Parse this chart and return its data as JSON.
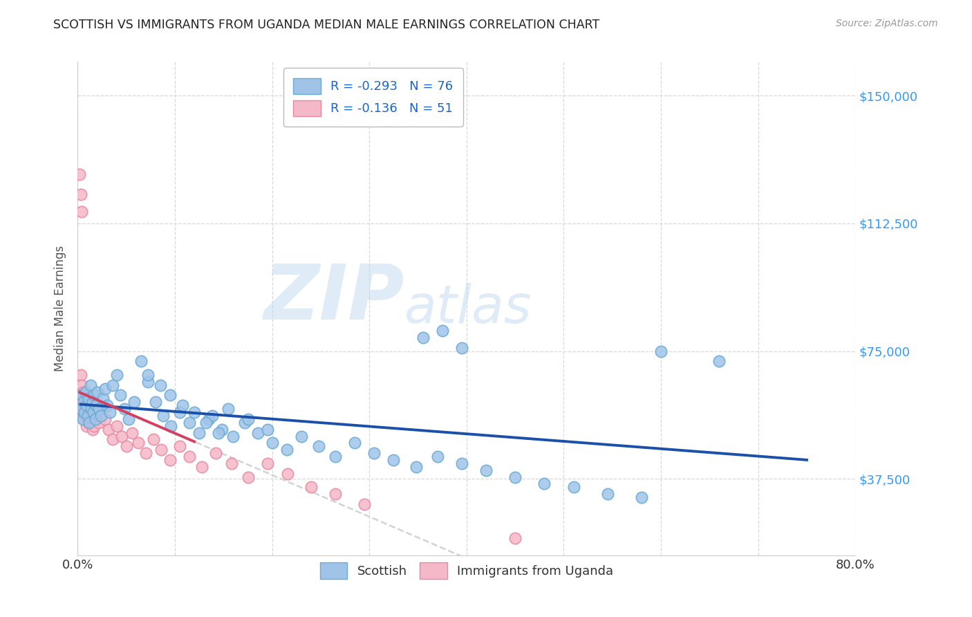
{
  "title": "SCOTTISH VS IMMIGRANTS FROM UGANDA MEDIAN MALE EARNINGS CORRELATION CHART",
  "source": "Source: ZipAtlas.com",
  "ylabel": "Median Male Earnings",
  "watermark_zip": "ZIP",
  "watermark_atlas": "atlas",
  "xlim": [
    0.0,
    0.8
  ],
  "ylim": [
    15000,
    160000
  ],
  "yticks": [
    37500,
    75000,
    112500,
    150000
  ],
  "ytick_labels": [
    "$37,500",
    "$75,000",
    "$112,500",
    "$150,000"
  ],
  "xticks": [
    0.0,
    0.1,
    0.2,
    0.3,
    0.4,
    0.5,
    0.6,
    0.7,
    0.8
  ],
  "xtick_labels": [
    "0.0%",
    "",
    "",
    "",
    "",
    "",
    "",
    "",
    "80.0%"
  ],
  "series1_color": "#a0c4e8",
  "series1_edge": "#6aaad4",
  "series2_color": "#f5b8c8",
  "series2_edge": "#e888a0",
  "trendline1_color": "#1a4faa",
  "trendline2_color": "#d44060",
  "trendline_ghost_color": "#cccccc",
  "background_color": "#ffffff",
  "grid_color": "#d8d8d8",
  "title_color": "#222222",
  "axis_label_color": "#555555",
  "ytick_color": "#3399ff",
  "source_color": "#999999",
  "R1": -0.293,
  "N1": 76,
  "R2": -0.136,
  "N2": 51,
  "scatter1_x": [
    0.003,
    0.004,
    0.005,
    0.006,
    0.007,
    0.008,
    0.009,
    0.01,
    0.011,
    0.012,
    0.013,
    0.014,
    0.015,
    0.016,
    0.017,
    0.018,
    0.019,
    0.02,
    0.022,
    0.024,
    0.026,
    0.028,
    0.03,
    0.033,
    0.036,
    0.04,
    0.044,
    0.048,
    0.052,
    0.058,
    0.065,
    0.072,
    0.08,
    0.088,
    0.096,
    0.105,
    0.115,
    0.125,
    0.135,
    0.148,
    0.16,
    0.172,
    0.185,
    0.2,
    0.215,
    0.23,
    0.248,
    0.265,
    0.285,
    0.305,
    0.325,
    0.348,
    0.37,
    0.395,
    0.42,
    0.45,
    0.48,
    0.51,
    0.545,
    0.58,
    0.355,
    0.375,
    0.395,
    0.138,
    0.155,
    0.175,
    0.195,
    0.072,
    0.085,
    0.095,
    0.108,
    0.12,
    0.132,
    0.145,
    0.6,
    0.66
  ],
  "scatter1_y": [
    58000,
    62000,
    55000,
    60000,
    57000,
    63000,
    59000,
    56000,
    61000,
    54000,
    65000,
    58000,
    60000,
    57000,
    62000,
    55000,
    59000,
    63000,
    58000,
    56000,
    61000,
    64000,
    59000,
    57000,
    65000,
    68000,
    62000,
    58000,
    55000,
    60000,
    72000,
    66000,
    60000,
    56000,
    53000,
    57000,
    54000,
    51000,
    55000,
    52000,
    50000,
    54000,
    51000,
    48000,
    46000,
    50000,
    47000,
    44000,
    48000,
    45000,
    43000,
    41000,
    44000,
    42000,
    40000,
    38000,
    36000,
    35000,
    33000,
    32000,
    79000,
    81000,
    76000,
    56000,
    58000,
    55000,
    52000,
    68000,
    65000,
    62000,
    59000,
    57000,
    54000,
    51000,
    75000,
    72000
  ],
  "scatter2_x": [
    0.002,
    0.003,
    0.004,
    0.005,
    0.006,
    0.007,
    0.008,
    0.009,
    0.01,
    0.011,
    0.012,
    0.013,
    0.014,
    0.015,
    0.016,
    0.017,
    0.018,
    0.02,
    0.022,
    0.025,
    0.028,
    0.032,
    0.036,
    0.04,
    0.045,
    0.05,
    0.056,
    0.062,
    0.07,
    0.078,
    0.086,
    0.095,
    0.105,
    0.115,
    0.128,
    0.142,
    0.158,
    0.175,
    0.195,
    0.216,
    0.24,
    0.265,
    0.295,
    0.002,
    0.003,
    0.004,
    0.003,
    0.004,
    0.005,
    0.006,
    0.45
  ],
  "scatter2_y": [
    58000,
    62000,
    60000,
    57000,
    55000,
    59000,
    56000,
    53000,
    57000,
    54000,
    60000,
    58000,
    55000,
    52000,
    56000,
    53000,
    59000,
    57000,
    54000,
    58000,
    55000,
    52000,
    49000,
    53000,
    50000,
    47000,
    51000,
    48000,
    45000,
    49000,
    46000,
    43000,
    47000,
    44000,
    41000,
    45000,
    42000,
    38000,
    42000,
    39000,
    35000,
    33000,
    30000,
    127000,
    121000,
    116000,
    68000,
    65000,
    63000,
    61000,
    20000
  ]
}
